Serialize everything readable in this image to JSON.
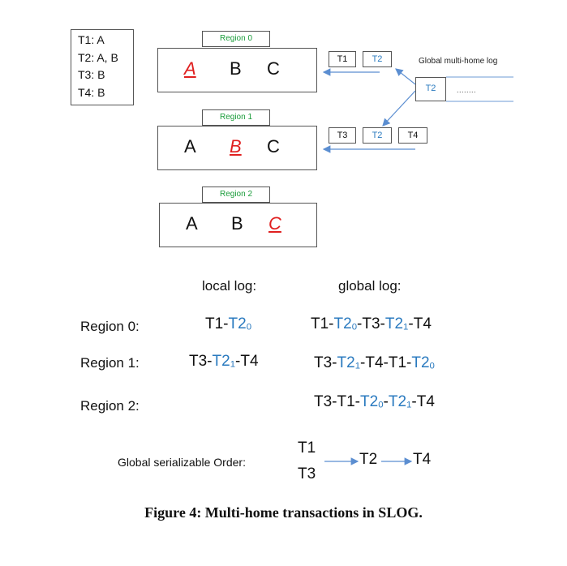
{
  "transactions": [
    "T1:  A",
    "T2:  A, B",
    "T3:  B",
    "T4:  B"
  ],
  "regions": [
    {
      "label": "Region  0",
      "cells": [
        "A",
        "B",
        "C"
      ],
      "home_index": 0
    },
    {
      "label": "Region  1",
      "cells": [
        "A",
        "B",
        "C"
      ],
      "home_index": 1
    },
    {
      "label": "Region  2",
      "cells": [
        "A",
        "B",
        "C"
      ],
      "home_index": 2
    }
  ],
  "region0_queue": [
    "T1",
    "T2"
  ],
  "region1_queue": [
    "T3",
    "T2",
    "T4"
  ],
  "global_multihome_log": {
    "label": "Global multi-home log",
    "entry": "T2",
    "ellipsis": "........"
  },
  "table": {
    "local_header": "local log:",
    "global_header": "global log:",
    "rows": [
      {
        "label": "Region 0:",
        "local": [
          [
            "T1-",
            ""
          ],
          [
            "T2",
            "0"
          ]
        ],
        "global": [
          [
            "T1-",
            ""
          ],
          [
            "T2",
            "0"
          ],
          [
            "-T3-",
            ""
          ],
          [
            "T2",
            "1"
          ],
          [
            "-T4",
            ""
          ]
        ]
      },
      {
        "label": "Region 1:",
        "local": [
          [
            "T3-",
            ""
          ],
          [
            "T2",
            "1"
          ],
          [
            "-T4",
            ""
          ]
        ],
        "global": [
          [
            "T3-",
            ""
          ],
          [
            "T2",
            "1"
          ],
          [
            "-T4-T1-",
            ""
          ],
          [
            "T2",
            "0"
          ]
        ]
      },
      {
        "label": "Region 2:",
        "local": [],
        "global": [
          [
            "T3-T1-",
            ""
          ],
          [
            "T2",
            "0"
          ],
          [
            "-",
            ""
          ],
          [
            "T2",
            "1"
          ],
          [
            "-T4",
            ""
          ]
        ]
      }
    ]
  },
  "order": {
    "label": "Global serializable Order:",
    "first_top": "T1",
    "first_bottom": "T3",
    "middle": "T2",
    "last": "T4"
  },
  "caption": "Figure 4: Multi-home transactions in SLOG.",
  "colors": {
    "home": "#e02020",
    "multi_home": "#2a7abf",
    "region_label": "#1a9c3a"
  }
}
